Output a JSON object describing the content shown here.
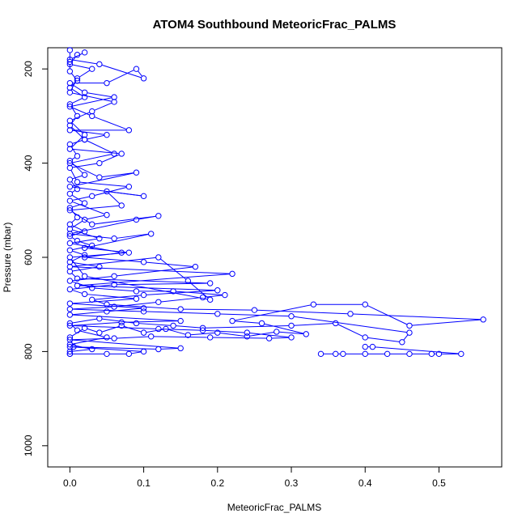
{
  "chart_data": {
    "type": "scatter",
    "title": "ATOM4 Southbound MeteoricFrac_PALMS",
    "xlabel": "MeteoricFrac_PALMS",
    "ylabel": "Pressure (mbar)",
    "xlim": [
      -0.03,
      0.585
    ],
    "ylim": [
      1045,
      155
    ],
    "y_reversed": true,
    "x_ticks": [
      0.0,
      0.1,
      0.2,
      0.3,
      0.4,
      0.5
    ],
    "x_tick_labels": [
      "0.0",
      "0.1",
      "0.2",
      "0.3",
      "0.4",
      "0.5"
    ],
    "y_ticks": [
      200,
      400,
      600,
      800,
      1000
    ],
    "y_tick_labels": [
      "200",
      "400",
      "600",
      "800",
      "1000"
    ],
    "grid": false,
    "marker": "open-circle",
    "connected": true,
    "color": "#0000ff",
    "series": [
      {
        "points": [
          [
            0.0,
            805
          ],
          [
            0.005,
            790
          ],
          [
            0.0,
            770
          ],
          [
            0.02,
            750
          ],
          [
            0.04,
            760
          ],
          [
            0.07,
            745
          ],
          [
            0.1,
            760
          ],
          [
            0.13,
            752
          ],
          [
            0.16,
            765
          ],
          [
            0.2,
            760
          ],
          [
            0.24,
            768
          ],
          [
            0.28,
            758
          ],
          [
            0.32,
            763
          ],
          [
            0.26,
            740
          ],
          [
            0.22,
            735
          ],
          [
            0.33,
            700
          ],
          [
            0.4,
            700
          ],
          [
            0.46,
            745
          ],
          [
            0.56,
            732
          ],
          [
            0.38,
            720
          ],
          [
            0.25,
            712
          ],
          [
            0.15,
            710
          ],
          [
            0.05,
            700
          ],
          [
            0.03,
            690
          ],
          [
            0.1,
            680
          ],
          [
            0.2,
            670
          ],
          [
            0.01,
            660
          ],
          [
            0.22,
            635
          ],
          [
            0.0,
            620
          ],
          [
            0.12,
            600
          ],
          [
            0.16,
            650
          ],
          [
            0.19,
            690
          ],
          [
            0.02,
            640
          ],
          [
            0.0,
            600
          ],
          [
            0.08,
            590
          ],
          [
            0.02,
            580
          ],
          [
            0.11,
            550
          ],
          [
            0.06,
            560
          ],
          [
            0.0,
            550
          ],
          [
            0.09,
            520
          ],
          [
            0.12,
            512
          ],
          [
            0.03,
            530
          ],
          [
            0.0,
            500
          ],
          [
            0.07,
            490
          ],
          [
            0.05,
            460
          ],
          [
            0.1,
            470
          ],
          [
            0.0,
            450
          ],
          [
            0.09,
            420
          ],
          [
            0.04,
            430
          ],
          [
            0.0,
            400
          ],
          [
            0.06,
            380
          ],
          [
            0.02,
            350
          ],
          [
            0.05,
            340
          ],
          [
            0.0,
            330
          ],
          [
            0.08,
            330
          ],
          [
            0.03,
            300
          ],
          [
            0.0,
            280
          ],
          [
            0.06,
            260
          ],
          [
            0.02,
            250
          ],
          [
            0.0,
            230
          ],
          [
            0.05,
            230
          ],
          [
            0.09,
            200
          ],
          [
            0.1,
            220
          ],
          [
            0.04,
            190
          ],
          [
            0.0,
            180
          ],
          [
            0.02,
            165
          ]
        ]
      },
      {
        "points": [
          [
            0.0,
            800
          ],
          [
            0.03,
            795
          ],
          [
            0.0,
            785
          ],
          [
            0.05,
            770
          ],
          [
            0.01,
            755
          ],
          [
            0.0,
            740
          ],
          [
            0.04,
            730
          ],
          [
            0.09,
            740
          ],
          [
            0.14,
            745
          ],
          [
            0.18,
            750
          ],
          [
            0.3,
            745
          ],
          [
            0.36,
            740
          ],
          [
            0.4,
            770
          ],
          [
            0.45,
            780
          ],
          [
            0.46,
            760
          ],
          [
            0.3,
            725
          ],
          [
            0.2,
            720
          ],
          [
            0.1,
            715
          ],
          [
            0.0,
            710
          ],
          [
            0.06,
            705
          ],
          [
            0.12,
            695
          ],
          [
            0.18,
            685
          ],
          [
            0.21,
            680
          ],
          [
            0.14,
            672
          ],
          [
            0.09,
            672
          ],
          [
            0.03,
            665
          ],
          [
            0.0,
            650
          ],
          [
            0.06,
            640
          ],
          [
            0.17,
            620
          ],
          [
            0.1,
            610
          ],
          [
            0.02,
            600
          ],
          [
            0.07,
            590
          ],
          [
            0.0,
            570
          ],
          [
            0.04,
            560
          ],
          [
            0.0,
            540
          ],
          [
            0.02,
            520
          ],
          [
            0.05,
            510
          ],
          [
            0.0,
            480
          ],
          [
            0.03,
            470
          ],
          [
            0.08,
            450
          ],
          [
            0.01,
            440
          ],
          [
            0.0,
            410
          ],
          [
            0.04,
            400
          ],
          [
            0.07,
            380
          ],
          [
            0.0,
            370
          ],
          [
            0.02,
            340
          ],
          [
            0.0,
            310
          ],
          [
            0.03,
            290
          ],
          [
            0.06,
            270
          ],
          [
            0.0,
            250
          ],
          [
            0.01,
            220
          ],
          [
            0.03,
            200
          ],
          [
            0.0,
            190
          ],
          [
            0.01,
            170
          ]
        ]
      },
      {
        "points": [
          [
            0.0,
            805
          ],
          [
            0.05,
            805
          ],
          [
            0.08,
            805
          ],
          [
            0.1,
            800
          ],
          [
            0.0,
            790
          ],
          [
            0.12,
            795
          ],
          [
            0.15,
            793
          ],
          [
            0.0,
            775
          ],
          [
            0.06,
            772
          ],
          [
            0.11,
            768
          ],
          [
            0.19,
            770
          ],
          [
            0.27,
            772
          ],
          [
            0.3,
            770
          ],
          [
            0.24,
            760
          ],
          [
            0.18,
            755
          ],
          [
            0.12,
            752
          ],
          [
            0.0,
            745
          ],
          [
            0.07,
            738
          ],
          [
            0.15,
            735
          ],
          [
            0.0,
            722
          ],
          [
            0.05,
            715
          ],
          [
            0.1,
            708
          ],
          [
            0.0,
            698
          ],
          [
            0.09,
            688
          ],
          [
            0.02,
            678
          ],
          [
            0.0,
            668
          ],
          [
            0.06,
            658
          ],
          [
            0.19,
            655
          ],
          [
            0.01,
            645
          ],
          [
            0.0,
            630
          ],
          [
            0.04,
            620
          ],
          [
            0.0,
            610
          ],
          [
            0.02,
            595
          ],
          [
            0.0,
            585
          ],
          [
            0.03,
            575
          ],
          [
            0.01,
            565
          ],
          [
            0.0,
            555
          ],
          [
            0.02,
            545
          ],
          [
            0.0,
            530
          ],
          [
            0.01,
            515
          ],
          [
            0.0,
            495
          ],
          [
            0.02,
            485
          ],
          [
            0.0,
            465
          ],
          [
            0.01,
            455
          ],
          [
            0.0,
            435
          ],
          [
            0.02,
            425
          ],
          [
            0.0,
            395
          ],
          [
            0.01,
            385
          ],
          [
            0.0,
            360
          ],
          [
            0.02,
            350
          ],
          [
            0.0,
            320
          ],
          [
            0.01,
            300
          ],
          [
            0.0,
            275
          ],
          [
            0.02,
            260
          ],
          [
            0.0,
            240
          ],
          [
            0.01,
            225
          ],
          [
            0.0,
            205
          ],
          [
            0.0,
            185
          ],
          [
            0.0,
            160
          ]
        ]
      },
      {
        "points": [
          [
            0.34,
            805
          ],
          [
            0.36,
            805
          ],
          [
            0.37,
            805
          ],
          [
            0.4,
            805
          ],
          [
            0.43,
            805
          ],
          [
            0.46,
            805
          ],
          [
            0.49,
            805
          ],
          [
            0.5,
            805
          ],
          [
            0.53,
            805
          ],
          [
            0.41,
            790
          ],
          [
            0.4,
            790
          ]
        ]
      }
    ]
  }
}
